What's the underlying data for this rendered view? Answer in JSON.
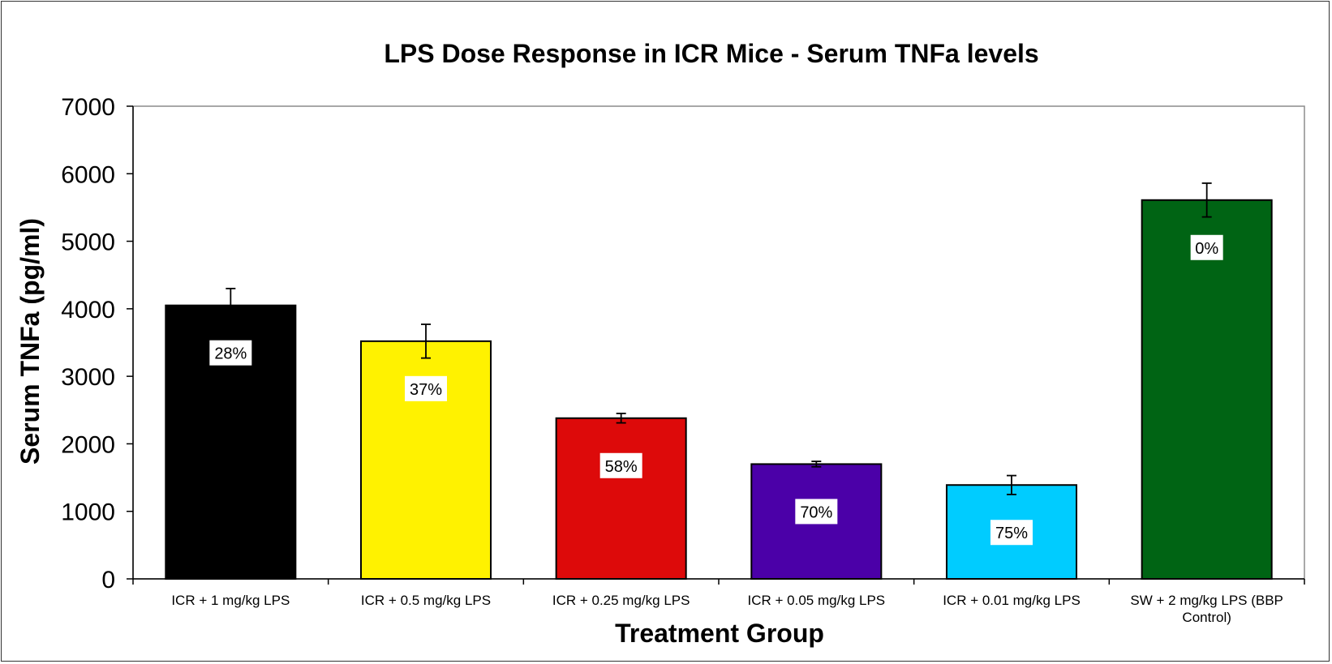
{
  "chart_data": {
    "type": "bar",
    "title": "LPS Dose Response in ICR Mice - Serum TNFa levels",
    "xlabel": "Treatment Group",
    "ylabel": "Serum TNFa (pg/ml)",
    "ylim": [
      0,
      7000
    ],
    "yticks": [
      0,
      1000,
      2000,
      3000,
      4000,
      5000,
      6000,
      7000
    ],
    "grid": false,
    "categories": [
      "ICR + 1 mg/kg LPS",
      "ICR + 0.5 mg/kg LPS",
      "ICR + 0.25 mg/kg LPS",
      "ICR + 0.05 mg/kg LPS",
      "ICR + 0.01 mg/kg LPS",
      "SW + 2 mg/kg LPS (BBP Control)"
    ],
    "values": [
      4050,
      3520,
      2380,
      1700,
      1390,
      5610
    ],
    "errors": [
      250,
      250,
      70,
      40,
      140,
      250
    ],
    "data_labels": [
      "28%",
      "37%",
      "58%",
      "70%",
      "75%",
      "0%"
    ],
    "colors": [
      "#000000",
      "#FFF200",
      "#DD0A0A",
      "#4B00A8",
      "#00CCFF",
      "#006414"
    ]
  }
}
